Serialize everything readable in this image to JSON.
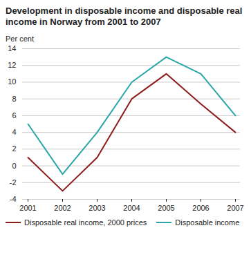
{
  "chart_data": {
    "type": "line",
    "title": "Development in disposable income and disposable real income in Norway from 2001  to 2007",
    "y_label": "Per cent",
    "categories": [
      "2001",
      "2002",
      "2003",
      "2004",
      "2005",
      "2006",
      "2007"
    ],
    "series": [
      {
        "name": "Disposable real income, 2000 prices",
        "color": "#8c1c1c",
        "values": [
          1,
          -3,
          1,
          8,
          11,
          7.4,
          4
        ]
      },
      {
        "name": "Disposable income",
        "color": "#2aa6a6",
        "values": [
          5,
          -1,
          4,
          10,
          13,
          11,
          6
        ]
      }
    ],
    "ylim": [
      -4,
      14
    ],
    "yticks": [
      -4,
      -2,
      0,
      2,
      4,
      6,
      8,
      10,
      12,
      14
    ],
    "grid": true,
    "legend": "bottom"
  }
}
